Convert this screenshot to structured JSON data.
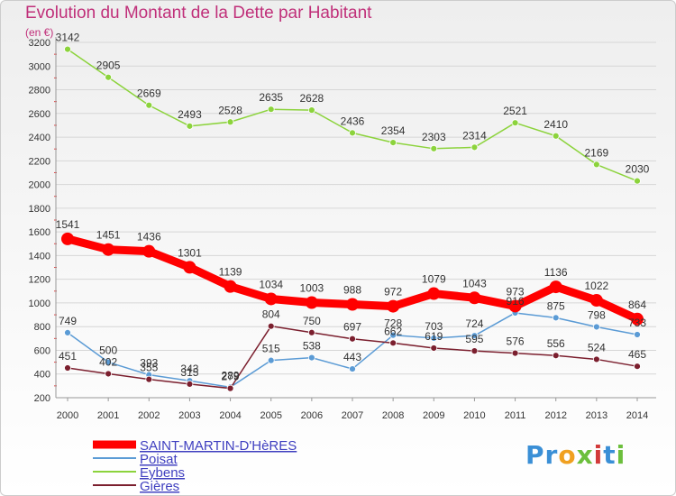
{
  "title": "Evolution du Montant de la Dette par Habitant",
  "subtitle": "(en €)",
  "logo": {
    "text": "Proxiti"
  },
  "chart_data": {
    "type": "line",
    "title": "Evolution du Montant de la Dette par Habitant",
    "ylabel": "(en €)",
    "x": [
      2000,
      2001,
      2002,
      2003,
      2004,
      2005,
      2006,
      2007,
      2008,
      2009,
      2010,
      2011,
      2012,
      2013,
      2014
    ],
    "ylim": [
      200,
      3200
    ],
    "yticks": [
      200,
      400,
      600,
      800,
      1000,
      1200,
      1400,
      1600,
      1800,
      2000,
      2200,
      2400,
      2600,
      2800,
      3000,
      3200
    ],
    "grid": true,
    "legend_position": "bottom-left",
    "series": [
      {
        "name": "SAINT-MARTIN-D'HèRES",
        "color": "#ff0000",
        "emphasis": true,
        "values": [
          1541,
          1451,
          1436,
          1301,
          1139,
          1034,
          1003,
          988,
          972,
          1079,
          1043,
          973,
          1136,
          1022,
          864
        ]
      },
      {
        "name": "Poisat",
        "color": "#5b9bd5",
        "values": [
          749,
          500,
          393,
          343,
          289,
          515,
          538,
          443,
          728,
          703,
          724,
          916,
          875,
          798,
          733
        ]
      },
      {
        "name": "Eybens",
        "color": "#8cd33c",
        "values": [
          3142,
          2905,
          2669,
          2493,
          2528,
          2635,
          2628,
          2436,
          2354,
          2303,
          2314,
          2521,
          2410,
          2169,
          2030
        ]
      },
      {
        "name": "Gières",
        "color": "#7b1f2e",
        "values": [
          451,
          402,
          355,
          315,
          279,
          804,
          750,
          697,
          662,
          619,
          595,
          576,
          556,
          524,
          465
        ]
      }
    ]
  }
}
